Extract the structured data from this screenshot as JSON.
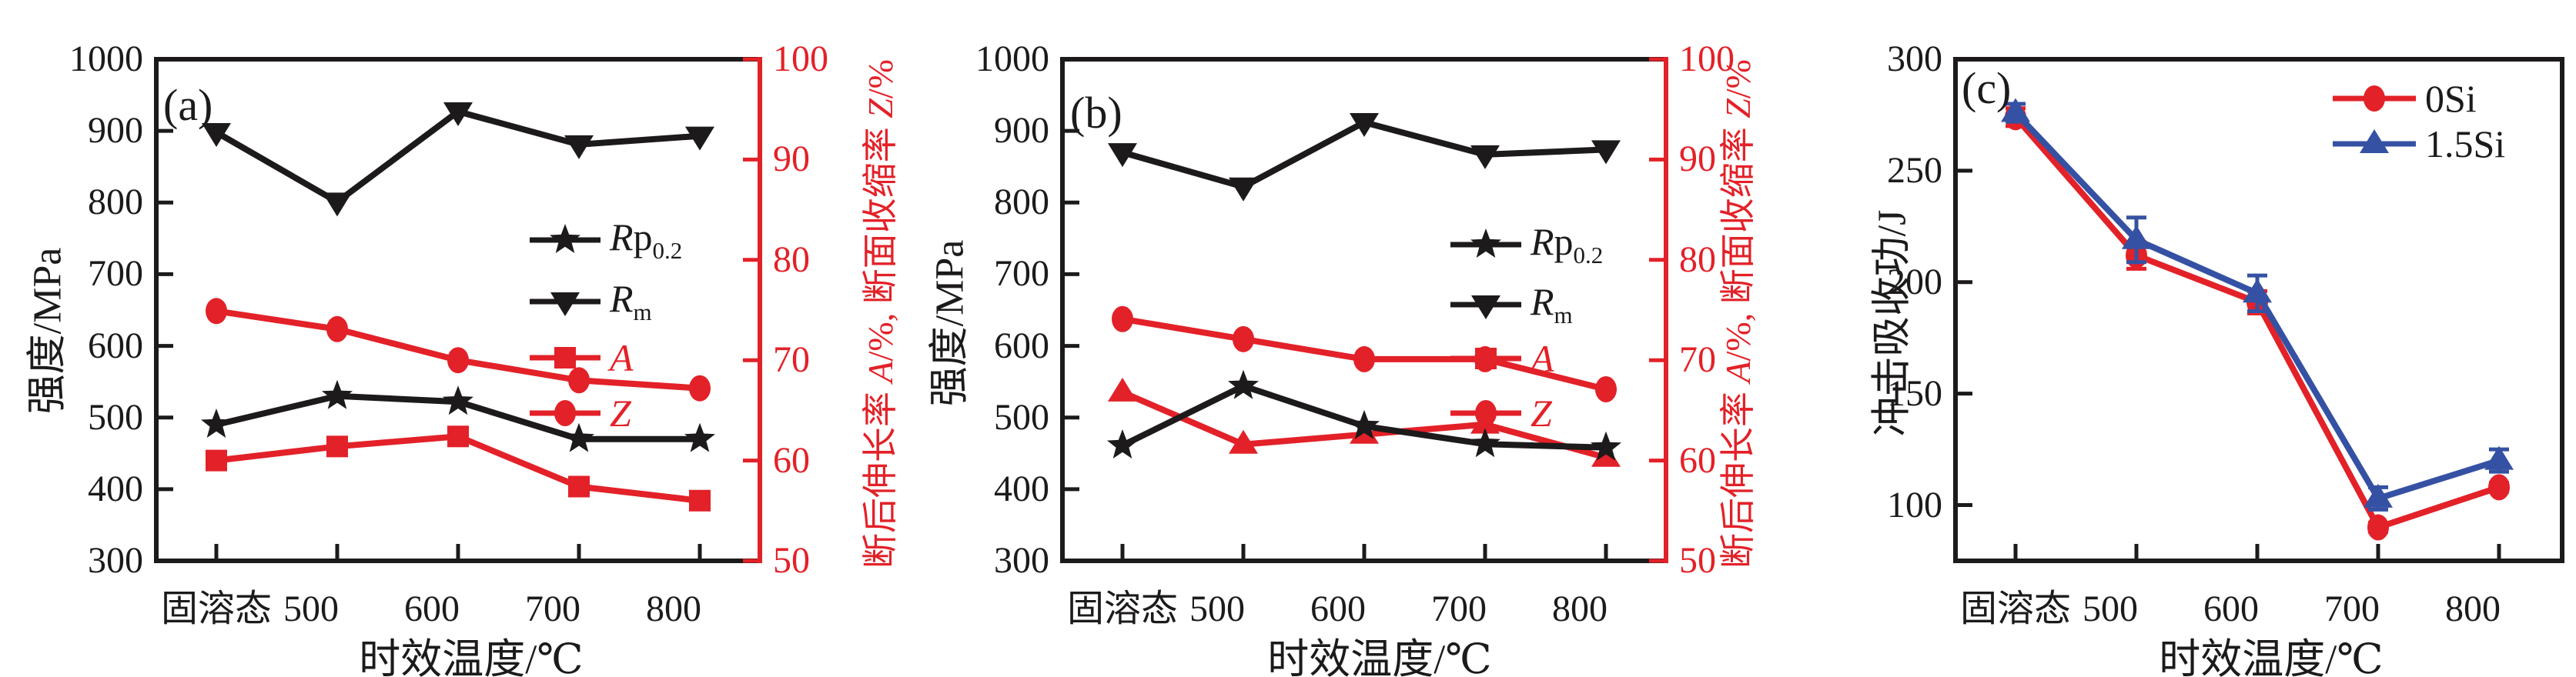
{
  "text": {
    "x_axis_title": "时效温度/℃",
    "strength_axis_title": "强度/MPa",
    "impact_axis_title": "冲击吸收功/J",
    "right_axis_title": "断后伸长率 A/%, 断面收缩率 Z/%",
    "right_axis_title_segments": [
      {
        "t": "断后伸长率 "
      },
      {
        "t": "A",
        "i": 1
      },
      {
        "t": "/%, 断面收缩率 "
      },
      {
        "t": "Z",
        "i": 1
      },
      {
        "t": "/%"
      }
    ]
  },
  "colors": {
    "black": "#1c1a1a",
    "red": "#e32128",
    "blue": "#3551a3"
  },
  "chart_data": [
    {
      "type": "line",
      "panel": "(a)",
      "x_title": "时效温度/℃",
      "categories": [
        "固溶态",
        "500",
        "600",
        "700",
        "800"
      ],
      "y_left": {
        "label": "强度/MPa",
        "min": 300,
        "max": 1000,
        "ticks": [
          300,
          400,
          500,
          600,
          700,
          800,
          900,
          1000
        ]
      },
      "y_right": {
        "label": "断后伸长率 A/%, 断面收缩率 Z/%",
        "min": 50,
        "max": 100,
        "ticks": [
          50,
          60,
          70,
          80,
          90,
          100
        ],
        "color": "#e32128"
      },
      "grid": false,
      "legend_position": "center-right",
      "series": [
        {
          "key": "rp02",
          "name": "Rp0.2",
          "axis": "left",
          "marker": "star",
          "color": "#1c1a1a",
          "values": [
            490,
            530,
            522,
            470,
            470
          ]
        },
        {
          "key": "rm",
          "name": "Rm",
          "axis": "left",
          "marker": "triangle-down",
          "color": "#1c1a1a",
          "values": [
            898,
            801,
            927,
            881,
            893
          ]
        },
        {
          "key": "a",
          "name": "A",
          "axis": "right",
          "marker": "square",
          "color": "#e32128",
          "values": [
            60.0,
            61.4,
            62.4,
            57.4,
            56.0
          ]
        },
        {
          "key": "z",
          "name": "Z",
          "axis": "right",
          "marker": "circle",
          "color": "#e32128",
          "values": [
            74.9,
            73.1,
            70.0,
            68.0,
            67.2
          ]
        }
      ],
      "legend": [
        {
          "key": "rp02",
          "marker": "star",
          "color": "#1c1a1a",
          "segments": [
            {
              "t": "R",
              "i": 1
            },
            {
              "t": "p"
            },
            {
              "t": "0.2",
              "sub": 1
            }
          ]
        },
        {
          "key": "rm",
          "marker": "triangle-down",
          "color": "#1c1a1a",
          "segments": [
            {
              "t": "R",
              "i": 1
            },
            {
              "t": "m",
              "sub": 1
            }
          ]
        },
        {
          "key": "a",
          "marker": "square",
          "color": "#e32128",
          "segments": [
            {
              "t": "A",
              "i": 1
            }
          ]
        },
        {
          "key": "z",
          "marker": "circle",
          "color": "#e32128",
          "segments": [
            {
              "t": "Z",
              "i": 1
            }
          ]
        }
      ]
    },
    {
      "type": "line",
      "panel": "(b)",
      "x_title": "时效温度/℃",
      "categories": [
        "固溶态",
        "500",
        "600",
        "700",
        "800"
      ],
      "y_left": {
        "label": "强度/MPa",
        "min": 300,
        "max": 1000,
        "ticks": [
          300,
          400,
          500,
          600,
          700,
          800,
          900,
          1000
        ]
      },
      "y_right": {
        "label": "断后伸长率 A/%, 断面收缩率 Z/%",
        "min": 50,
        "max": 100,
        "ticks": [
          50,
          60,
          70,
          80,
          90,
          100
        ],
        "color": "#e32128"
      },
      "grid": false,
      "legend_position": "center-right",
      "series": [
        {
          "key": "rp02",
          "name": "Rp0.2",
          "axis": "left",
          "marker": "star",
          "color": "#1c1a1a",
          "values": [
            461,
            544,
            488,
            463,
            458
          ]
        },
        {
          "key": "rm",
          "name": "Rm",
          "axis": "left",
          "marker": "triangle-down",
          "color": "#1c1a1a",
          "values": [
            870,
            822,
            912,
            867,
            874
          ]
        },
        {
          "key": "a",
          "name": "A",
          "axis": "right",
          "marker": "triangle-up",
          "color": "#e32128",
          "values": [
            66.8,
            61.6,
            62.6,
            63.6,
            60.3
          ]
        },
        {
          "key": "z",
          "name": "Z",
          "axis": "right",
          "marker": "circle",
          "color": "#e32128",
          "values": [
            74.1,
            72.1,
            70.1,
            70.1,
            67.1
          ]
        }
      ],
      "legend": [
        {
          "key": "rp02",
          "marker": "star",
          "color": "#1c1a1a",
          "segments": [
            {
              "t": "R",
              "i": 1
            },
            {
              "t": "p"
            },
            {
              "t": "0.2",
              "sub": 1
            }
          ]
        },
        {
          "key": "rm",
          "marker": "triangle-down",
          "color": "#1c1a1a",
          "segments": [
            {
              "t": "R",
              "i": 1
            },
            {
              "t": "m",
              "sub": 1
            }
          ]
        },
        {
          "key": "a",
          "marker": "square",
          "color": "#e32128",
          "segments": [
            {
              "t": "A",
              "i": 1
            }
          ]
        },
        {
          "key": "z",
          "marker": "circle",
          "color": "#e32128",
          "segments": [
            {
              "t": "Z",
              "i": 1
            }
          ]
        }
      ]
    },
    {
      "type": "line",
      "panel": "(c)",
      "x_title": "时效温度/℃",
      "categories": [
        "固溶态",
        "500",
        "600",
        "700",
        "800"
      ],
      "y_left": {
        "label": "冲击吸收功/J",
        "min": 75,
        "max": 300,
        "ticks": [
          100,
          150,
          200,
          250,
          300
        ]
      },
      "grid": false,
      "legend_position": "top-right",
      "series": [
        {
          "key": "0si",
          "name": "0Si",
          "axis": "left",
          "marker": "circle",
          "color": "#e32128",
          "values": [
            274,
            212,
            191,
            90,
            108
          ],
          "errors": [
            4,
            6,
            5,
            2,
            2
          ]
        },
        {
          "key": "1p5si",
          "name": "1.5Si",
          "axis": "left",
          "marker": "triangle-up",
          "color": "#3551a3",
          "values": [
            276,
            219,
            195,
            103,
            120
          ],
          "errors": [
            4,
            10,
            8,
            5,
            5
          ]
        }
      ],
      "legend": [
        {
          "key": "0si",
          "marker": "circle",
          "color": "#e32128",
          "segments": [
            {
              "t": "0Si"
            }
          ]
        },
        {
          "key": "1p5si",
          "marker": "triangle-up",
          "color": "#3551a3",
          "segments": [
            {
              "t": "1.5Si"
            }
          ]
        }
      ]
    }
  ]
}
